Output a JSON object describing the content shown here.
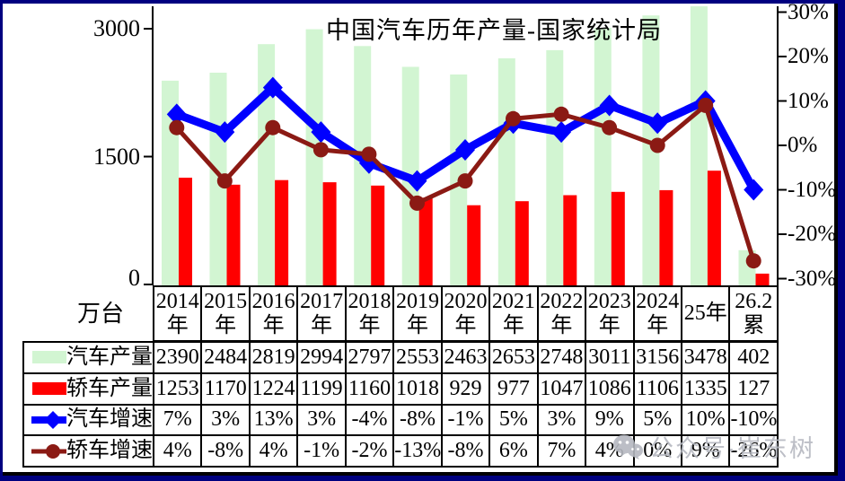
{
  "frame": {
    "border_color": "#000080",
    "background": "#ffffff"
  },
  "watermark": {
    "icon": "wechat-icon",
    "text": "公众号·崔东树"
  },
  "chart_data": {
    "type": "combo-bar-line",
    "title": "中国汽车历年产量-国家统计局",
    "legend_position": "table-left",
    "categories": [
      "2014年",
      "2015年",
      "2016年",
      "2017年",
      "2018年",
      "2019年",
      "2020年",
      "2021年",
      "2022年",
      "2023年",
      "2024年",
      "25年",
      "26.2累"
    ],
    "category_display": [
      [
        "2014",
        "年"
      ],
      [
        "2015",
        "年"
      ],
      [
        "2016",
        "年"
      ],
      [
        "2017",
        "年"
      ],
      [
        "2018",
        "年"
      ],
      [
        "2019",
        "年"
      ],
      [
        "2020",
        "年"
      ],
      [
        "2021",
        "年"
      ],
      [
        "2022",
        "年"
      ],
      [
        "2023",
        "年"
      ],
      [
        "2024",
        "年"
      ],
      [
        "25年"
      ],
      [
        "26.2",
        "累"
      ]
    ],
    "left_axis": {
      "unit_label": "万台",
      "tick_values": [
        3000,
        1500,
        0
      ],
      "tick_labels": [
        "3000",
        "1500",
        "0"
      ],
      "min": 0,
      "max": 3250,
      "grid": false
    },
    "right_axis": {
      "tick_values": [
        30,
        20,
        10,
        0,
        -10,
        -20,
        -30
      ],
      "tick_labels": [
        "30%",
        "20%",
        "10%",
        "0%",
        "-10%",
        "-20%",
        "-30%"
      ],
      "min": -30,
      "max": 30,
      "grid": false
    },
    "series": [
      {
        "name": "汽车产量",
        "type": "bar",
        "axis": "left",
        "color": "#d2f5d2",
        "values": [
          2390,
          2484,
          2819,
          2994,
          2797,
          2553,
          2463,
          2653,
          2748,
          3011,
          3156,
          3478,
          402
        ],
        "display": [
          "2390",
          "2484",
          "2819",
          "2994",
          "2797",
          "2553",
          "2463",
          "2653",
          "2748",
          "3011",
          "3156",
          "3478",
          "402"
        ]
      },
      {
        "name": "轿车产量",
        "type": "bar",
        "axis": "left",
        "color": "#ff0000",
        "values": [
          1253,
          1170,
          1224,
          1199,
          1160,
          1018,
          929,
          977,
          1047,
          1086,
          1106,
          1335,
          127
        ],
        "display": [
          "1253",
          "1170",
          "1224",
          "1199",
          "1160",
          "1018",
          "929",
          "977",
          "1047",
          "1086",
          "1106",
          "1335",
          "127"
        ]
      },
      {
        "name": "汽车增速",
        "type": "line",
        "axis": "right",
        "color": "#0000ff",
        "marker": "diamond",
        "values": [
          7,
          3,
          13,
          3,
          -4,
          -8,
          -1,
          5,
          3,
          9,
          5,
          10,
          -10
        ],
        "display": [
          "7%",
          "3%",
          "13%",
          "3%",
          "-4%",
          "-8%",
          "-1%",
          "5%",
          "3%",
          "9%",
          "5%",
          "10%",
          "-10%"
        ]
      },
      {
        "name": "轿车增速",
        "type": "line",
        "axis": "right",
        "color": "#8b1a14",
        "marker": "circle",
        "values": [
          4,
          -8,
          4,
          -1,
          -2,
          -13,
          -8,
          6,
          7,
          4,
          0,
          9,
          -26
        ],
        "display": [
          "4%",
          "-8%",
          "4%",
          "-1%",
          "-2%",
          "-13%",
          "-8%",
          "6%",
          "7%",
          "4%",
          "0%",
          "9%",
          "-26%"
        ]
      }
    ]
  }
}
